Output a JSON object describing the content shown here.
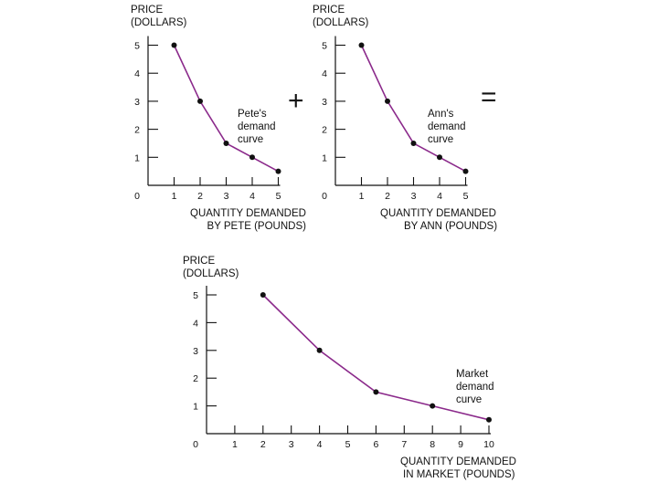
{
  "operators": {
    "plus": "+",
    "equals": "="
  },
  "chart_data": [
    {
      "type": "line",
      "id": "pete",
      "ylabel": [
        "PRICE",
        "(DOLLARS)"
      ],
      "xlabel": [
        "QUANTITY DEMANDED",
        "BY PETE (POUNDS)"
      ],
      "annotation": [
        "Pete's",
        "demand",
        "curve"
      ],
      "origin_label": "0",
      "xticks": [
        1,
        2,
        3,
        4,
        5
      ],
      "yticks": [
        1,
        2,
        3,
        4,
        5
      ],
      "xlim": [
        0,
        5
      ],
      "ylim": [
        0,
        5
      ],
      "series": [
        {
          "name": "Pete's demand curve",
          "x": [
            1,
            2,
            3,
            4,
            5
          ],
          "y": [
            5,
            3,
            1.5,
            1,
            0.5
          ]
        }
      ],
      "line_color": "#8b2a8b"
    },
    {
      "type": "line",
      "id": "ann",
      "ylabel": [
        "PRICE",
        "(DOLLARS)"
      ],
      "xlabel": [
        "QUANTITY DEMANDED",
        "BY ANN (POUNDS)"
      ],
      "annotation": [
        "Ann's",
        "demand",
        "curve"
      ],
      "origin_label": "0",
      "xticks": [
        1,
        2,
        3,
        4,
        5
      ],
      "yticks": [
        1,
        2,
        3,
        4,
        5
      ],
      "xlim": [
        0,
        5
      ],
      "ylim": [
        0,
        5
      ],
      "series": [
        {
          "name": "Ann's demand curve",
          "x": [
            1,
            2,
            3,
            4,
            5
          ],
          "y": [
            5,
            3,
            1.5,
            1,
            0.5
          ]
        }
      ],
      "line_color": "#8b2a8b"
    },
    {
      "type": "line",
      "id": "market",
      "ylabel": [
        "PRICE",
        "(DOLLARS)"
      ],
      "xlabel": [
        "QUANTITY DEMANDED",
        "IN MARKET (POUNDS)"
      ],
      "annotation": [
        "Market",
        "demand",
        "curve"
      ],
      "origin_label": "0",
      "xticks": [
        1,
        2,
        3,
        4,
        5,
        6,
        7,
        8,
        9,
        10
      ],
      "yticks": [
        1,
        2,
        3,
        4,
        5
      ],
      "xlim": [
        0,
        10
      ],
      "ylim": [
        0,
        5
      ],
      "series": [
        {
          "name": "Market demand curve",
          "x": [
            2,
            4,
            6,
            8,
            10
          ],
          "y": [
            5,
            3,
            1.5,
            1,
            0.5
          ]
        }
      ],
      "line_color": "#8b2a8b"
    }
  ]
}
